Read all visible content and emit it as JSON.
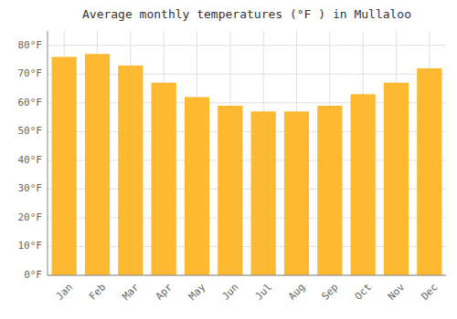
{
  "chart_data": {
    "type": "bar",
    "title": "Average monthly temperatures (°F ) in Mullaloo",
    "categories": [
      "Jan",
      "Feb",
      "Mar",
      "Apr",
      "May",
      "Jun",
      "Jul",
      "Aug",
      "Sep",
      "Oct",
      "Nov",
      "Dec"
    ],
    "values": [
      76,
      77,
      73,
      67,
      62,
      59,
      57,
      57,
      59,
      63,
      67,
      72
    ],
    "color": "#FDB931",
    "ylim": [
      0,
      85
    ],
    "yticks": [
      {
        "value": 0,
        "label": "0°F"
      },
      {
        "value": 10,
        "label": "10°F"
      },
      {
        "value": 20,
        "label": "20°F"
      },
      {
        "value": 30,
        "label": "30°F"
      },
      {
        "value": 40,
        "label": "40°F"
      },
      {
        "value": 50,
        "label": "50°F"
      },
      {
        "value": 60,
        "label": "60°F"
      },
      {
        "value": 70,
        "label": "70°F"
      },
      {
        "value": 80,
        "label": "80°F"
      }
    ],
    "grid": true
  }
}
